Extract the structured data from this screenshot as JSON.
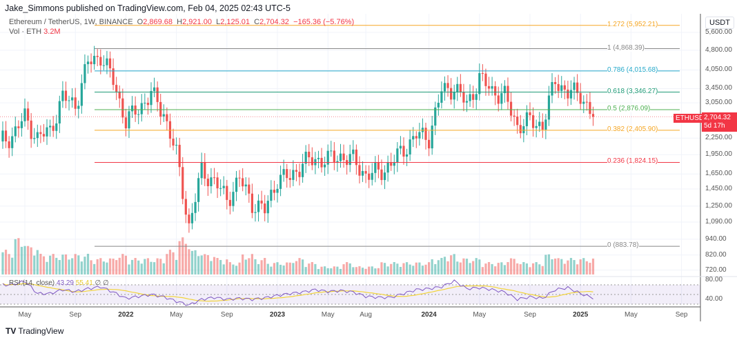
{
  "header": {
    "published": "Jake_Simmons published on TradingView.com, Feb 04, 2025 02:43 UTC-5"
  },
  "legend": {
    "symbol": "Ethereum / TetherUS, 1W, BINANCE",
    "o_label": "O",
    "open": "2,869.68",
    "h_label": "H",
    "high": "2,921.00",
    "l_label": "L",
    "low": "2,125.01",
    "c_label": "C",
    "close": "2,704.32",
    "change": "−165.36 (−5.76%)",
    "vol_label": "Vol · ETH",
    "vol_value": "3.2M"
  },
  "rsi": {
    "label": "RSI (14, close)",
    "value": "43.29",
    "ma": "55.41",
    "extra": "∅ ∅"
  },
  "axis": {
    "currency": "USDT"
  },
  "price_tag": {
    "symbol": "ETHUSDT",
    "price": "2,704.32",
    "countdown": "5d 17h"
  },
  "brand": {
    "name": "TradingView"
  },
  "colors": {
    "up": "#26a69a",
    "down": "#ef5350",
    "rsi": "#7e57c2",
    "rsi_ma": "#f2d43a"
  },
  "chart_data": {
    "type": "candlestick",
    "title": "Ethereum / TetherUS, 1W, BINANCE",
    "y_scale": "log",
    "ylim": [
      690,
      6000
    ],
    "y_ticks": [
      "5,600.00",
      "4,800.00",
      "4,050.00",
      "3,450.00",
      "3,050.00",
      "2,250.00",
      "1,950.00",
      "1,650.00",
      "1,450.00",
      "1,250.00",
      "1,090.00",
      "940.00",
      "820.00",
      "720.00"
    ],
    "y_tick_values": [
      5600,
      4800,
      4050,
      3450,
      3050,
      2250,
      1950,
      1650,
      1450,
      1250,
      1090,
      940,
      820,
      720
    ],
    "x_ticks": [
      {
        "label": "May",
        "month": 1
      },
      {
        "label": "Sep",
        "month": 5
      },
      {
        "label": "2022",
        "month": 9,
        "bold": true
      },
      {
        "label": "May",
        "month": 13
      },
      {
        "label": "Sep",
        "month": 17
      },
      {
        "label": "2023",
        "month": 21,
        "bold": true
      },
      {
        "label": "May",
        "month": 25
      },
      {
        "label": "Aug",
        "month": 28
      },
      {
        "label": "2024",
        "month": 33,
        "bold": true
      },
      {
        "label": "May",
        "month": 37
      },
      {
        "label": "Sep",
        "month": 41
      },
      {
        "label": "2025",
        "month": 45,
        "bold": true
      },
      {
        "label": "May",
        "month": 49
      },
      {
        "label": "Sep",
        "month": 53
      }
    ],
    "monthly_close_approx": [
      2300,
      2700,
      2250,
      2400,
      3200,
      3000,
      4300,
      4600,
      3700,
      2600,
      2900,
      3300,
      2800,
      1950,
      1050,
      1700,
      1550,
      1330,
      1580,
      1290,
      1200,
      1590,
      1600,
      1820,
      1870,
      1870,
      1930,
      1860,
      1640,
      1670,
      1800,
      2050,
      2300,
      2280,
      3380,
      3500,
      3010,
      3760,
      3400,
      3230,
      2510,
      2600,
      2520,
      3700,
      3330,
      3300,
      2704
    ],
    "volume_relative": [
      6,
      9,
      7,
      5,
      5,
      5,
      5,
      4,
      4,
      5,
      4,
      4,
      4,
      6,
      9,
      6,
      5,
      4,
      3,
      5,
      4,
      3,
      3,
      4,
      3,
      2,
      2,
      3,
      2,
      2,
      3,
      3,
      3,
      3,
      4,
      5,
      4,
      4,
      3,
      3,
      4,
      3,
      3,
      5,
      4,
      4,
      4
    ],
    "rsi_monthly_approx": [
      70,
      78,
      52,
      52,
      60,
      56,
      62,
      66,
      55,
      42,
      46,
      50,
      45,
      36,
      28,
      40,
      44,
      40,
      42,
      40,
      43,
      48,
      52,
      55,
      60,
      56,
      58,
      55,
      46,
      44,
      44,
      52,
      60,
      62,
      66,
      78,
      62,
      64,
      60,
      55,
      40,
      45,
      42,
      60,
      64,
      52,
      43
    ],
    "rsi_levels": [
      70,
      50,
      30
    ],
    "rsi_ticks": [
      "80.00",
      "40.00"
    ],
    "fib_levels": [
      {
        "label": "1.272 (5,952.21)",
        "price": 5952.21,
        "color": "#f5a623"
      },
      {
        "label": "1 (4,868.39)",
        "price": 4868.39,
        "color": "#888"
      },
      {
        "label": "0.786 (4,015.68)",
        "price": 4015.68,
        "color": "#22a7c9"
      },
      {
        "label": "0.618 (3,346.27)",
        "price": 3346.27,
        "color": "#1e9a77"
      },
      {
        "label": "0.5 (2,876.09)",
        "price": 2876.09,
        "color": "#4caf50"
      },
      {
        "label": "0.382 (2,405.90)",
        "price": 2405.9,
        "color": "#f5a623"
      },
      {
        "label": "0.236 (1,824.15)",
        "price": 1824.15,
        "color": "#f23645"
      },
      {
        "label": "0 (883.78)",
        "price": 883.78,
        "color": "#888"
      }
    ]
  }
}
